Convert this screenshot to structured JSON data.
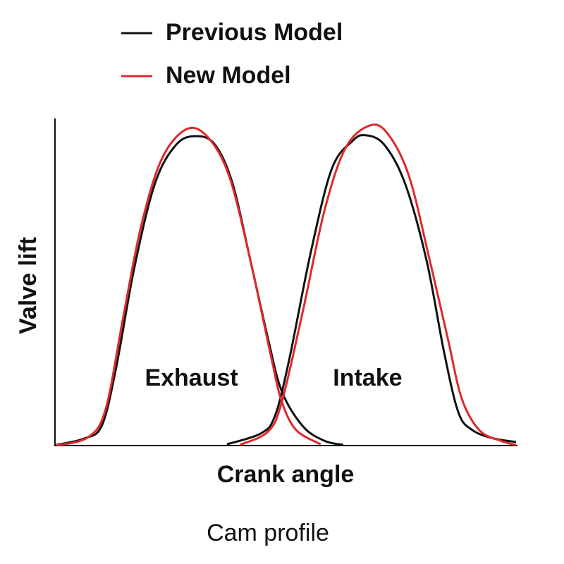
{
  "chart_data": {
    "type": "line",
    "title": "Cam profile",
    "xlabel": "Crank angle",
    "ylabel": "Valve lift",
    "xlim": [
      0,
      100
    ],
    "ylim": [
      0,
      100
    ],
    "lobe_labels": [
      "Exhaust",
      "Intake"
    ],
    "legend": "top-left",
    "series": [
      {
        "name": "Previous Model",
        "color": "#111111",
        "lobes": [
          {
            "x": [
              0.3,
              6.4,
              10.2,
              13.3,
              17.2,
              21.7,
              26.3,
              30.6,
              34.7,
              38.5,
              42.4,
              46.2,
              49.2,
              53.8,
              58.4,
              62.5
            ],
            "values": [
              0.2,
              2.2,
              6.3,
              24.3,
              54.8,
              80.9,
              92.8,
              95.4,
              92.8,
              80.9,
              57.0,
              33.0,
              16.7,
              5.9,
              1.5,
              0.2
            ]
          },
          {
            "x": [
              37.3,
              44.6,
              47.7,
              50.8,
              55.4,
              60.0,
              64.5,
              67.3,
              71.4,
              75.9,
              80.6,
              84.4,
              87.5,
              90.5,
              95.1,
              100
            ],
            "values": [
              0.4,
              3.7,
              9.1,
              26.5,
              59.1,
              85.2,
              93.9,
              95.7,
              92.8,
              80.9,
              57.0,
              28.7,
              10.2,
              4.8,
              2.2,
              1.1
            ]
          }
        ]
      },
      {
        "name": "New Model",
        "color": "#e0282d",
        "lobes": [
          {
            "x": [
              0.3,
              7.2,
              11.0,
              14.8,
              18.7,
              23.2,
              28.6,
              33.2,
              37.8,
              42.4,
              47.0,
              49.2,
              52.3,
              57.6
            ],
            "values": [
              0,
              2.6,
              11.3,
              39.6,
              67.8,
              88.5,
              97.6,
              95.0,
              83.0,
              57.0,
              26.5,
              13.5,
              4.8,
              0.4
            ]
          },
          {
            "x": [
              40.1,
              46.2,
              49.2,
              53.8,
              58.4,
              63.0,
              68.3,
              72.2,
              76.8,
              81.3,
              85.2,
              88.2,
              92.0,
              96.6,
              100
            ],
            "values": [
              0.2,
              4.3,
              13.5,
              41.7,
              72.2,
              91.7,
              98.7,
              96.1,
              83.0,
              57.0,
              33.0,
              14.6,
              4.8,
              1.5,
              0.2
            ]
          }
        ]
      }
    ]
  }
}
